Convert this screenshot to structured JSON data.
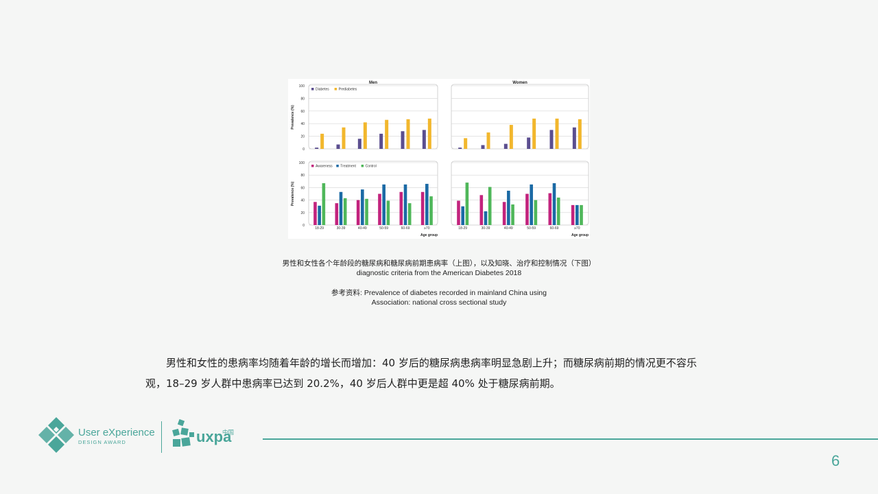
{
  "figure": {
    "panel_titles": {
      "men": "Men",
      "women": "Women"
    },
    "ylabel": "Prevalence (%)",
    "xlabel": "Age group"
  },
  "chart_data": [
    {
      "type": "bar",
      "title": "Men",
      "categories": [
        "18-29",
        "30-39",
        "40-49",
        "50-59",
        "60-69",
        "≥70"
      ],
      "ylabel": "Prevalence (%)",
      "xlabel": "",
      "ylim": [
        0,
        100
      ],
      "yticks": [
        0,
        20,
        40,
        60,
        80,
        100
      ],
      "grid": true,
      "legend": "top-left",
      "series": [
        {
          "name": "Diabetes",
          "color": "#5b4e8f",
          "values": [
            2,
            7,
            16,
            24,
            28,
            30
          ]
        },
        {
          "name": "Prediabetes",
          "color": "#f2b72d",
          "values": [
            24,
            34,
            42,
            46,
            47,
            48
          ]
        }
      ]
    },
    {
      "type": "bar",
      "title": "Women",
      "categories": [
        "18-29",
        "30-39",
        "40-49",
        "50-59",
        "60-69",
        "≥70"
      ],
      "ylabel": "",
      "xlabel": "",
      "ylim": [
        0,
        100
      ],
      "yticks": [
        0,
        20,
        40,
        60,
        80,
        100
      ],
      "grid": true,
      "series": [
        {
          "name": "Diabetes",
          "color": "#5b4e8f",
          "values": [
            2,
            6,
            8,
            18,
            30,
            34
          ]
        },
        {
          "name": "Prediabetes",
          "color": "#f2b72d",
          "values": [
            17,
            26,
            38,
            48,
            48,
            47
          ]
        }
      ]
    },
    {
      "type": "bar",
      "title": "",
      "categories": [
        "18-29",
        "30-39",
        "40-49",
        "50-59",
        "60-69",
        "≥70"
      ],
      "ylabel": "Prevalence (%)",
      "xlabel": "Age group",
      "ylim": [
        0,
        100
      ],
      "yticks": [
        0,
        20,
        40,
        60,
        80,
        100
      ],
      "grid": true,
      "legend": "top-left",
      "series": [
        {
          "name": "Awareness",
          "color": "#c2237d",
          "values": [
            37,
            35,
            40,
            50,
            53,
            53
          ]
        },
        {
          "name": "Treatment",
          "color": "#1b6aa5",
          "values": [
            31,
            53,
            57,
            65,
            65,
            66
          ]
        },
        {
          "name": "Control",
          "color": "#4fb75a",
          "values": [
            67,
            43,
            42,
            39,
            35,
            46
          ]
        }
      ]
    },
    {
      "type": "bar",
      "title": "",
      "categories": [
        "18-29",
        "30-39",
        "40-49",
        "50-59",
        "60-69",
        "≥70"
      ],
      "ylabel": "",
      "xlabel": "Age group",
      "ylim": [
        0,
        100
      ],
      "yticks": [
        0,
        20,
        40,
        60,
        80,
        100
      ],
      "grid": true,
      "series": [
        {
          "name": "Awareness",
          "color": "#c2237d",
          "values": [
            39,
            48,
            37,
            50,
            51,
            32
          ]
        },
        {
          "name": "Treatment",
          "color": "#1b6aa5",
          "values": [
            30,
            22,
            55,
            65,
            67,
            32
          ]
        },
        {
          "name": "Control",
          "color": "#4fb75a",
          "values": [
            68,
            61,
            33,
            40,
            44,
            32
          ]
        }
      ]
    }
  ],
  "caption": {
    "line1": "男性和女性各个年龄段的糖尿病和糖尿病前期患病率（上图），以及知晓、治疗和控制情况（下图）",
    "line2": "diagnostic criteria from the American Diabetes 2018",
    "line3": "参考资料: Prevalence of diabetes recorded in mainland China using",
    "line4": "Association: national cross sectional study"
  },
  "body": {
    "p1": "男性和女性的患病率均随着年龄的增长而增加：40 岁后的糖尿病患病率明显急剧上升；而糖尿病前期的情况更不容乐",
    "p2": "观，18–29 岁人群中患病率已达到 20.2%，40 岁后人群中更是超 40% 处于糖尿病前期。"
  },
  "footer": {
    "logo1_title": "User eXperience",
    "logo1_sub": "DESIGN  AWARD",
    "logo2_text": "uxpa",
    "logo2_cn": "中国",
    "page_number": "6",
    "accent_color": "#4aa69a"
  }
}
